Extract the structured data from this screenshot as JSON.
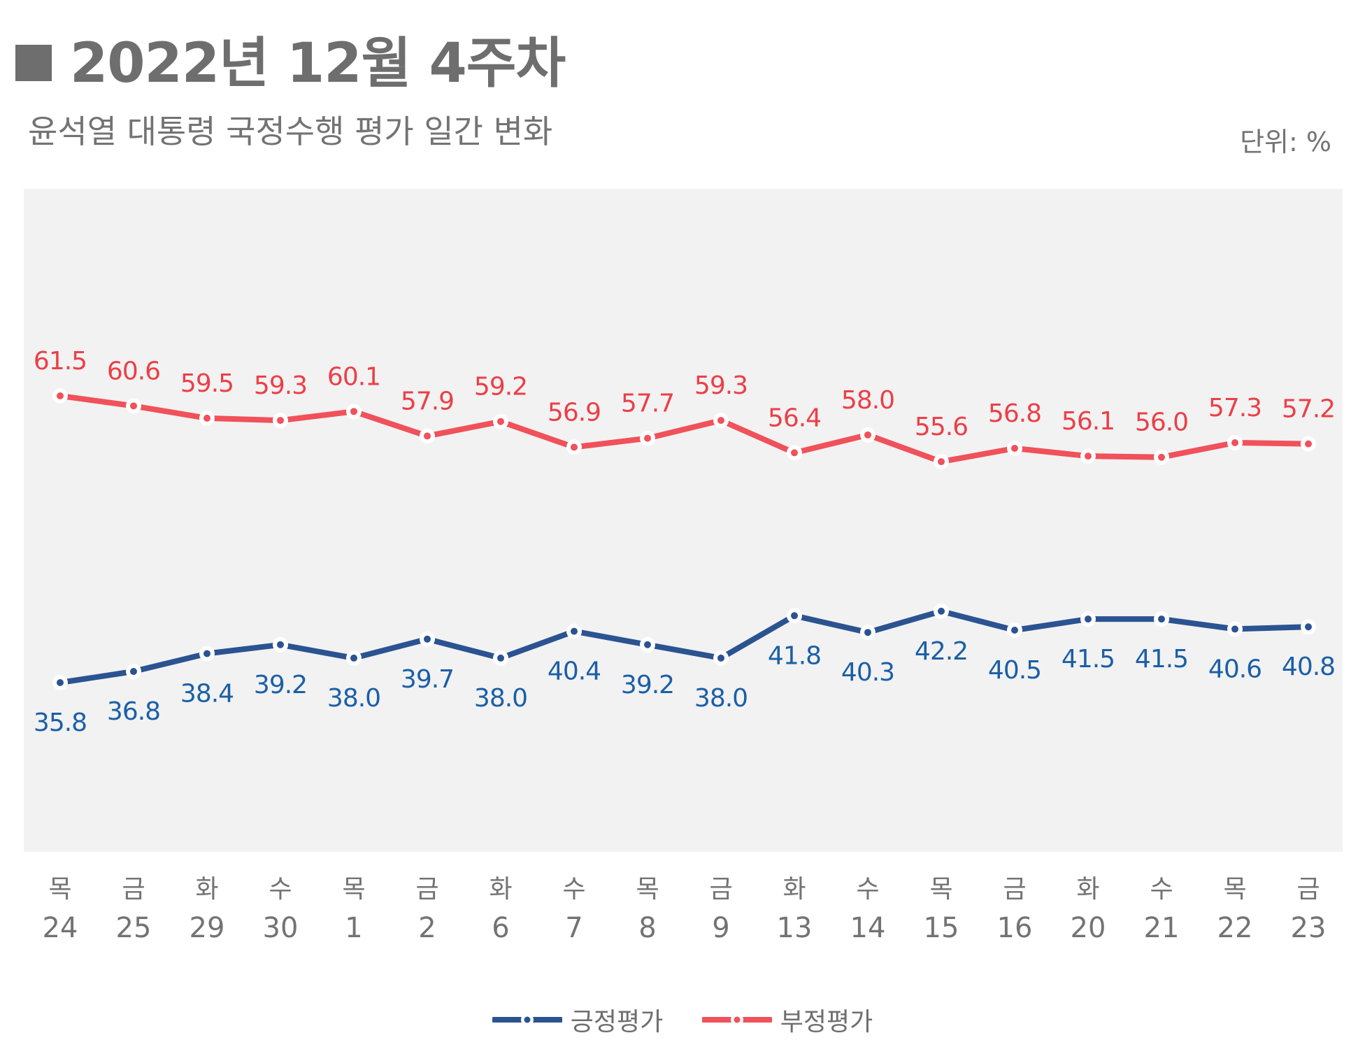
{
  "title": "2022년 12월 4주차",
  "subtitle": "윤석열 대통령 국정수행 평가 일간 변화",
  "unit_label": "단위: %",
  "colors": {
    "positive": "#2b5391",
    "negative": "#f0515a",
    "positive_label": "#1b5fa6",
    "negative_label": "#ec3f47",
    "plot_bg": "#f2f2f2",
    "axis_text": "#737373"
  },
  "chart_data": {
    "type": "line",
    "title": "윤석열 대통령 국정수행 평가 일간 변화",
    "unit": "%",
    "x_days": [
      "목",
      "금",
      "화",
      "수",
      "목",
      "금",
      "화",
      "수",
      "목",
      "금",
      "화",
      "수",
      "목",
      "금",
      "화",
      "수",
      "목",
      "금"
    ],
    "x_dates": [
      "24",
      "25",
      "29",
      "30",
      "1",
      "2",
      "6",
      "7",
      "8",
      "9",
      "13",
      "14",
      "15",
      "16",
      "20",
      "21",
      "22",
      "23"
    ],
    "ylim": [
      20,
      80
    ],
    "legend_position": "bottom-center",
    "series": [
      {
        "name": "긍정평가",
        "values": [
          35.8,
          36.8,
          38.4,
          39.2,
          38.0,
          39.7,
          38.0,
          40.4,
          39.2,
          38.0,
          41.8,
          40.3,
          42.2,
          40.5,
          41.5,
          41.5,
          40.6,
          40.8
        ]
      },
      {
        "name": "부정평가",
        "values": [
          61.5,
          60.6,
          59.5,
          59.3,
          60.1,
          57.9,
          59.2,
          56.9,
          57.7,
          59.3,
          56.4,
          58.0,
          55.6,
          56.8,
          56.1,
          56.0,
          57.3,
          57.2
        ]
      }
    ]
  }
}
